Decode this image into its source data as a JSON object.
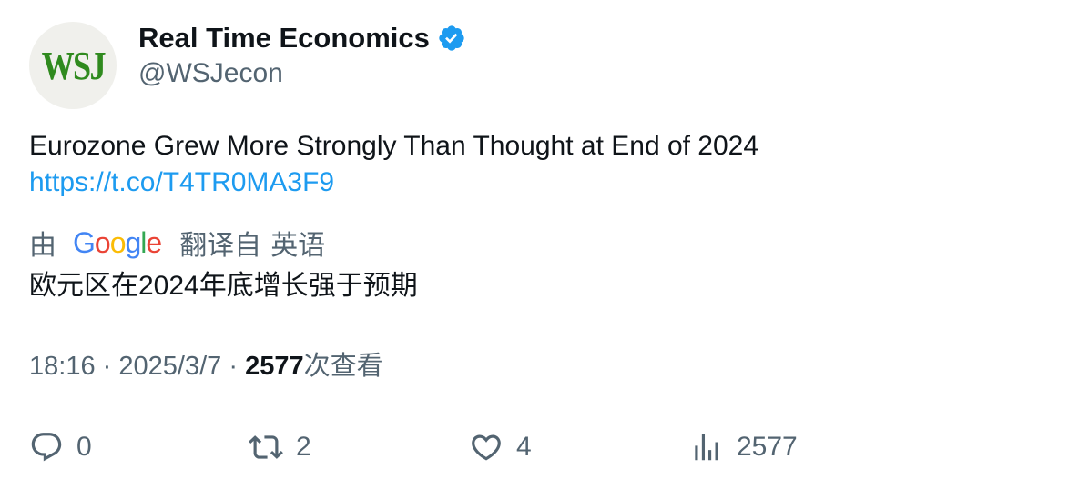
{
  "author": {
    "avatar_text": "WSJ",
    "display_name": "Real Time Economics",
    "handle": "@WSJecon",
    "verified_color": "#1d9bf0"
  },
  "tweet": {
    "text": "Eurozone Grew More Strongly Than Thought at End of 2024",
    "link": "https://t.co/T4TR0MA3F9"
  },
  "translation": {
    "by_label": "由",
    "google_letters": [
      "G",
      "o",
      "o",
      "g",
      "l",
      "e"
    ],
    "from_label": "翻译自",
    "language": "英语",
    "translated_text": "欧元区在2024年底增长强于预期"
  },
  "meta": {
    "time": "18:16",
    "separator": "·",
    "date": "2025/3/7",
    "views_count": "2577",
    "views_label": "次查看"
  },
  "actions": {
    "replies": "0",
    "retweets": "2",
    "likes": "4",
    "views": "2577",
    "icon_color": "#536471"
  },
  "icons": {
    "verified": "verified-badge-icon",
    "reply": "reply-icon",
    "retweet": "retweet-icon",
    "like": "heart-icon",
    "views": "bar-chart-icon"
  }
}
